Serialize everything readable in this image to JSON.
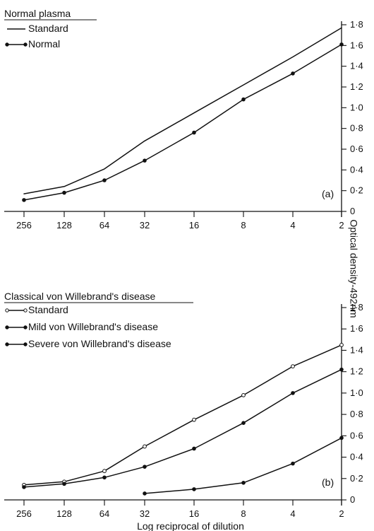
{
  "chart_data": [
    {
      "type": "line",
      "title": "Normal plasma",
      "panel_label": "(a)",
      "x": [
        256,
        128,
        64,
        32,
        16,
        8,
        4,
        2
      ],
      "x_tick_labels": [
        "256",
        "128",
        "64",
        "32",
        "16",
        "8",
        "4",
        "2"
      ],
      "y_tick_labels": [
        "0",
        "0·2",
        "0·4",
        "0·6",
        "0·8",
        "1·0",
        "1·2",
        "1·4",
        "1·6",
        "1·8"
      ],
      "ylim": [
        0,
        1.8
      ],
      "legend_position": "top-left",
      "series": [
        {
          "name": "Standard",
          "marker": "none",
          "values": [
            0.17,
            0.24,
            0.41,
            0.68,
            0.95,
            1.22,
            1.49,
            1.77
          ],
          "plateau": 1.77
        },
        {
          "name": "Normal",
          "marker": "filled",
          "values": [
            0.11,
            0.18,
            0.3,
            0.49,
            0.76,
            1.08,
            1.33,
            1.61
          ],
          "plateau": 1.61
        }
      ]
    },
    {
      "type": "line",
      "title": "Classical von Willebrand's disease",
      "panel_label": "(b)",
      "xlabel": "Log reciprocal of dilution",
      "x": [
        256,
        128,
        64,
        32,
        16,
        8,
        4,
        2
      ],
      "x_tick_labels": [
        "256",
        "128",
        "64",
        "32",
        "16",
        "8",
        "4",
        "2"
      ],
      "y_tick_labels": [
        "0",
        "0·2",
        "0·4",
        "0·6",
        "0·8",
        "1·0",
        "1·2",
        "1·4",
        "1·6",
        "1·8"
      ],
      "ylim": [
        0,
        1.8
      ],
      "legend_position": "top-left",
      "series": [
        {
          "name": "Standard",
          "marker": "open",
          "values": [
            0.14,
            0.17,
            0.27,
            0.5,
            0.75,
            0.98,
            1.25,
            1.45
          ],
          "plateau": 1.45
        },
        {
          "name": "Mild von Willebrand's disease",
          "marker": "filled",
          "values": [
            0.12,
            0.15,
            0.21,
            0.31,
            0.48,
            0.72,
            1.0,
            1.22
          ]
        },
        {
          "name": "Severe von Willebrand's disease",
          "marker": "filled",
          "x": [
            32,
            16,
            8,
            4,
            2
          ],
          "values": [
            0.06,
            0.1,
            0.16,
            0.34,
            0.58
          ]
        }
      ]
    }
  ],
  "shared_ylabel": "Optical density-492nm"
}
